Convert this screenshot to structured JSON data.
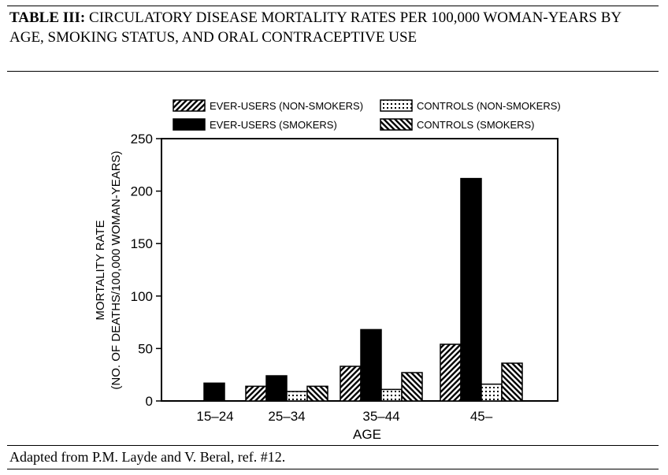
{
  "title": {
    "lead": "TABLE III:",
    "text": " CIRCULATORY DISEASE MORTALITY RATES PER 100,000 WOMAN-YEARS BY AGE, SMOKING STATUS, AND ORAL CONTRACEPTIVE USE"
  },
  "footnote": "Adapted from P.M. Layde and V. Beral, ref. #12.",
  "chart_data": {
    "type": "bar",
    "categories": [
      "15–24",
      "25–34",
      "35–44",
      "45–"
    ],
    "series": [
      {
        "name": "EVER-USERS (NON-SMOKERS)",
        "pattern": "diag-forward",
        "values": [
          0,
          14,
          33,
          54
        ]
      },
      {
        "name": "EVER-USERS (SMOKERS)",
        "pattern": "solid",
        "values": [
          17,
          24,
          68,
          212
        ]
      },
      {
        "name": "CONTROLS (NON-SMOKERS)",
        "pattern": "dots",
        "values": [
          0,
          9,
          11,
          16
        ]
      },
      {
        "name": "CONTROLS (SMOKERS)",
        "pattern": "diag-backward",
        "values": [
          0,
          14,
          27,
          36
        ]
      }
    ],
    "xlabel": "AGE",
    "ylabel_line1": "MORTALITY RATE",
    "ylabel_line2": "(NO. OF DEATHS/100,000 WOMAN-YEARS)",
    "ylim": [
      0,
      250
    ],
    "yticks": [
      "0",
      "50",
      "100",
      "150",
      "200",
      "250"
    ],
    "grid": false,
    "legend_position": "top"
  }
}
